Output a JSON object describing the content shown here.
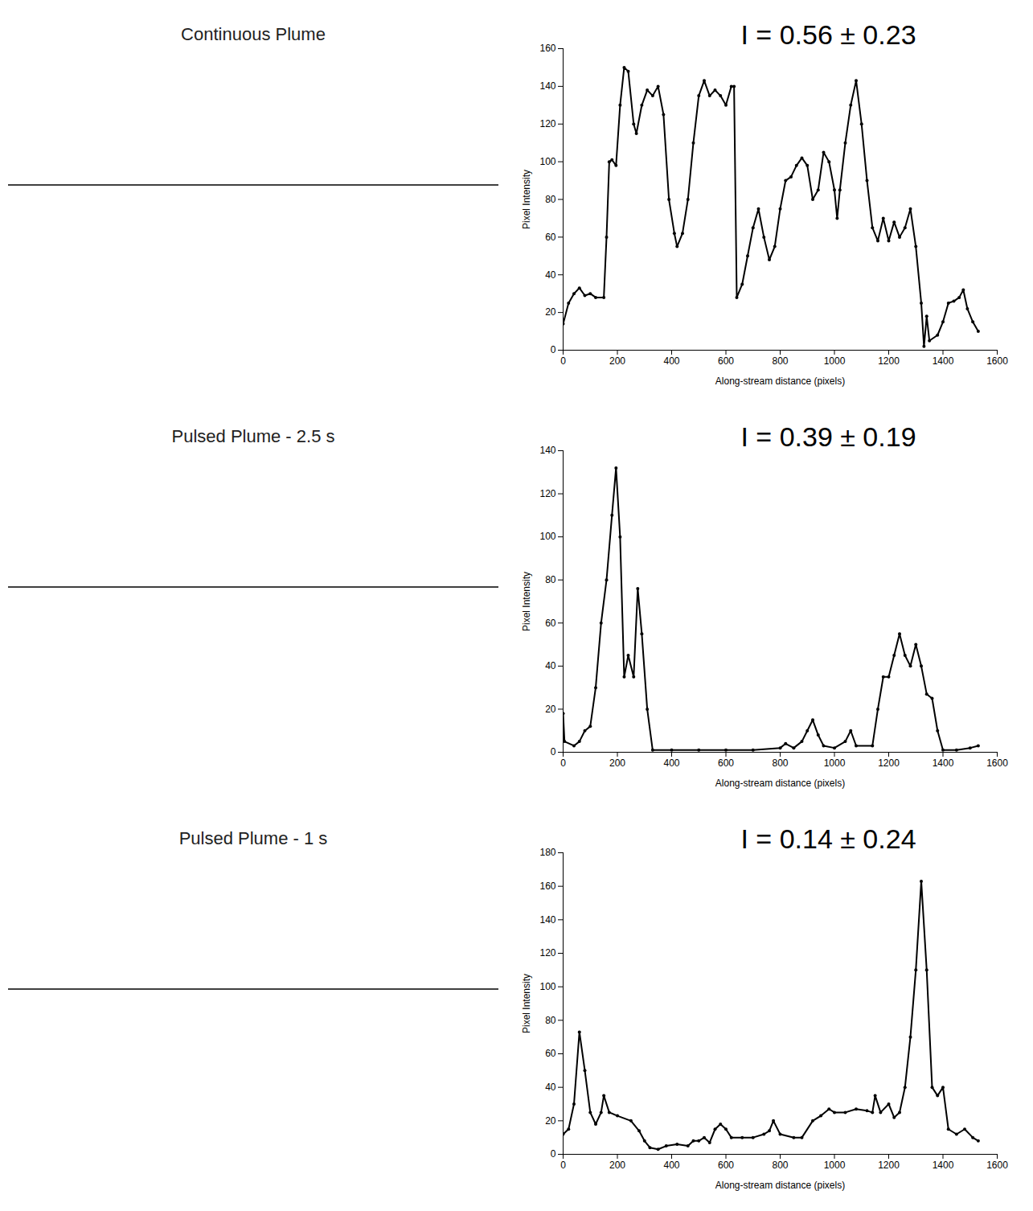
{
  "chart_data": [
    {
      "type": "line",
      "panel_title": "Continuous Plume",
      "annotation": "I = 0.56 ± 0.23",
      "x_label": "Along-stream distance (pixels)",
      "y_label": "Pixel Intensity",
      "x": [
        0,
        20,
        40,
        60,
        80,
        100,
        120,
        150,
        160,
        170,
        180,
        195,
        210,
        225,
        240,
        260,
        270,
        290,
        310,
        330,
        350,
        370,
        390,
        410,
        420,
        440,
        460,
        480,
        500,
        520,
        540,
        560,
        580,
        600,
        620,
        630,
        640,
        660,
        680,
        700,
        720,
        740,
        760,
        780,
        800,
        820,
        840,
        860,
        880,
        900,
        920,
        940,
        960,
        980,
        1000,
        1010,
        1020,
        1040,
        1060,
        1080,
        1100,
        1120,
        1140,
        1160,
        1180,
        1200,
        1220,
        1240,
        1260,
        1280,
        1300,
        1320,
        1330,
        1340,
        1350,
        1380,
        1400,
        1420,
        1440,
        1460,
        1475,
        1490,
        1510,
        1530
      ],
      "series": [
        {
          "color": "#000000",
          "marker": "circle",
          "values": [
            14,
            25,
            30,
            33,
            29,
            30,
            28,
            28,
            60,
            100,
            101,
            98,
            130,
            150,
            148,
            120,
            115,
            130,
            138,
            135,
            140,
            125,
            80,
            62,
            55,
            62,
            80,
            110,
            135,
            143,
            135,
            138,
            135,
            130,
            140,
            140,
            28,
            35,
            50,
            65,
            75,
            60,
            48,
            55,
            75,
            90,
            92,
            98,
            102,
            98,
            80,
            85,
            105,
            100,
            85,
            70,
            85,
            110,
            130,
            143,
            120,
            90,
            65,
            58,
            70,
            58,
            68,
            60,
            65,
            75,
            55,
            25,
            2,
            18,
            5,
            8,
            15,
            25,
            26,
            28,
            32,
            22,
            15,
            10
          ]
        }
      ],
      "xlim": [
        0,
        1600
      ],
      "xticks": [
        0,
        200,
        400,
        600,
        800,
        1000,
        1200,
        1400,
        1600
      ],
      "ylim": [
        0,
        160
      ],
      "yticks": [
        0,
        20,
        40,
        60,
        80,
        100,
        120,
        140,
        160
      ]
    },
    {
      "type": "line",
      "panel_title": "Pulsed Plume - 2.5 s",
      "annotation": "I = 0.39 ± 0.19",
      "x_label": "Along-stream distance (pixels)",
      "y_label": "Pixel Intensity",
      "x": [
        0,
        5,
        40,
        60,
        80,
        100,
        120,
        140,
        160,
        180,
        195,
        210,
        225,
        240,
        260,
        275,
        290,
        310,
        330,
        400,
        500,
        600,
        700,
        800,
        820,
        850,
        880,
        900,
        920,
        940,
        960,
        1000,
        1040,
        1060,
        1080,
        1140,
        1160,
        1180,
        1200,
        1220,
        1240,
        1260,
        1280,
        1300,
        1320,
        1340,
        1360,
        1380,
        1400,
        1450,
        1500,
        1530
      ],
      "series": [
        {
          "color": "#000000",
          "marker": "circle",
          "values": [
            18,
            5,
            3,
            5,
            10,
            12,
            30,
            60,
            80,
            110,
            132,
            100,
            35,
            45,
            35,
            76,
            55,
            20,
            1,
            1,
            1,
            1,
            1,
            2,
            4,
            2,
            5,
            10,
            15,
            8,
            3,
            2,
            5,
            10,
            3,
            3,
            20,
            35,
            35,
            45,
            55,
            45,
            40,
            50,
            40,
            27,
            25,
            10,
            1,
            1,
            2,
            3
          ]
        }
      ],
      "xlim": [
        0,
        1600
      ],
      "xticks": [
        0,
        200,
        400,
        600,
        800,
        1000,
        1200,
        1400,
        1600
      ],
      "ylim": [
        0,
        140
      ],
      "yticks": [
        0,
        20,
        40,
        60,
        80,
        100,
        120,
        140
      ]
    },
    {
      "type": "line",
      "panel_title": "Pulsed Plume - 1 s",
      "annotation": "I = 0.14 ± 0.24",
      "x_label": "Along-stream distance (pixels)",
      "y_label": "Pixel Intensity",
      "x": [
        0,
        20,
        40,
        60,
        80,
        100,
        120,
        140,
        150,
        170,
        200,
        250,
        280,
        300,
        320,
        350,
        380,
        420,
        460,
        480,
        500,
        520,
        540,
        560,
        580,
        600,
        620,
        660,
        700,
        740,
        760,
        775,
        800,
        850,
        880,
        920,
        950,
        980,
        1000,
        1040,
        1080,
        1120,
        1140,
        1150,
        1170,
        1200,
        1220,
        1240,
        1260,
        1280,
        1300,
        1320,
        1340,
        1360,
        1380,
        1400,
        1420,
        1450,
        1480,
        1510,
        1530
      ],
      "series": [
        {
          "color": "#000000",
          "marker": "circle",
          "values": [
            12,
            15,
            30,
            73,
            50,
            25,
            18,
            25,
            35,
            25,
            23,
            20,
            14,
            8,
            4,
            3,
            5,
            6,
            5,
            8,
            8,
            10,
            7,
            15,
            18,
            15,
            10,
            10,
            10,
            12,
            14,
            20,
            12,
            10,
            10,
            20,
            23,
            27,
            25,
            25,
            27,
            26,
            25,
            35,
            25,
            30,
            22,
            25,
            40,
            70,
            110,
            163,
            110,
            40,
            35,
            40,
            15,
            12,
            15,
            10,
            8
          ]
        }
      ],
      "xlim": [
        0,
        1600
      ],
      "xticks": [
        0,
        200,
        400,
        600,
        800,
        1000,
        1200,
        1400,
        1600
      ],
      "ylim": [
        0,
        180
      ],
      "yticks": [
        0,
        20,
        40,
        60,
        80,
        100,
        120,
        140,
        160,
        180
      ]
    }
  ]
}
